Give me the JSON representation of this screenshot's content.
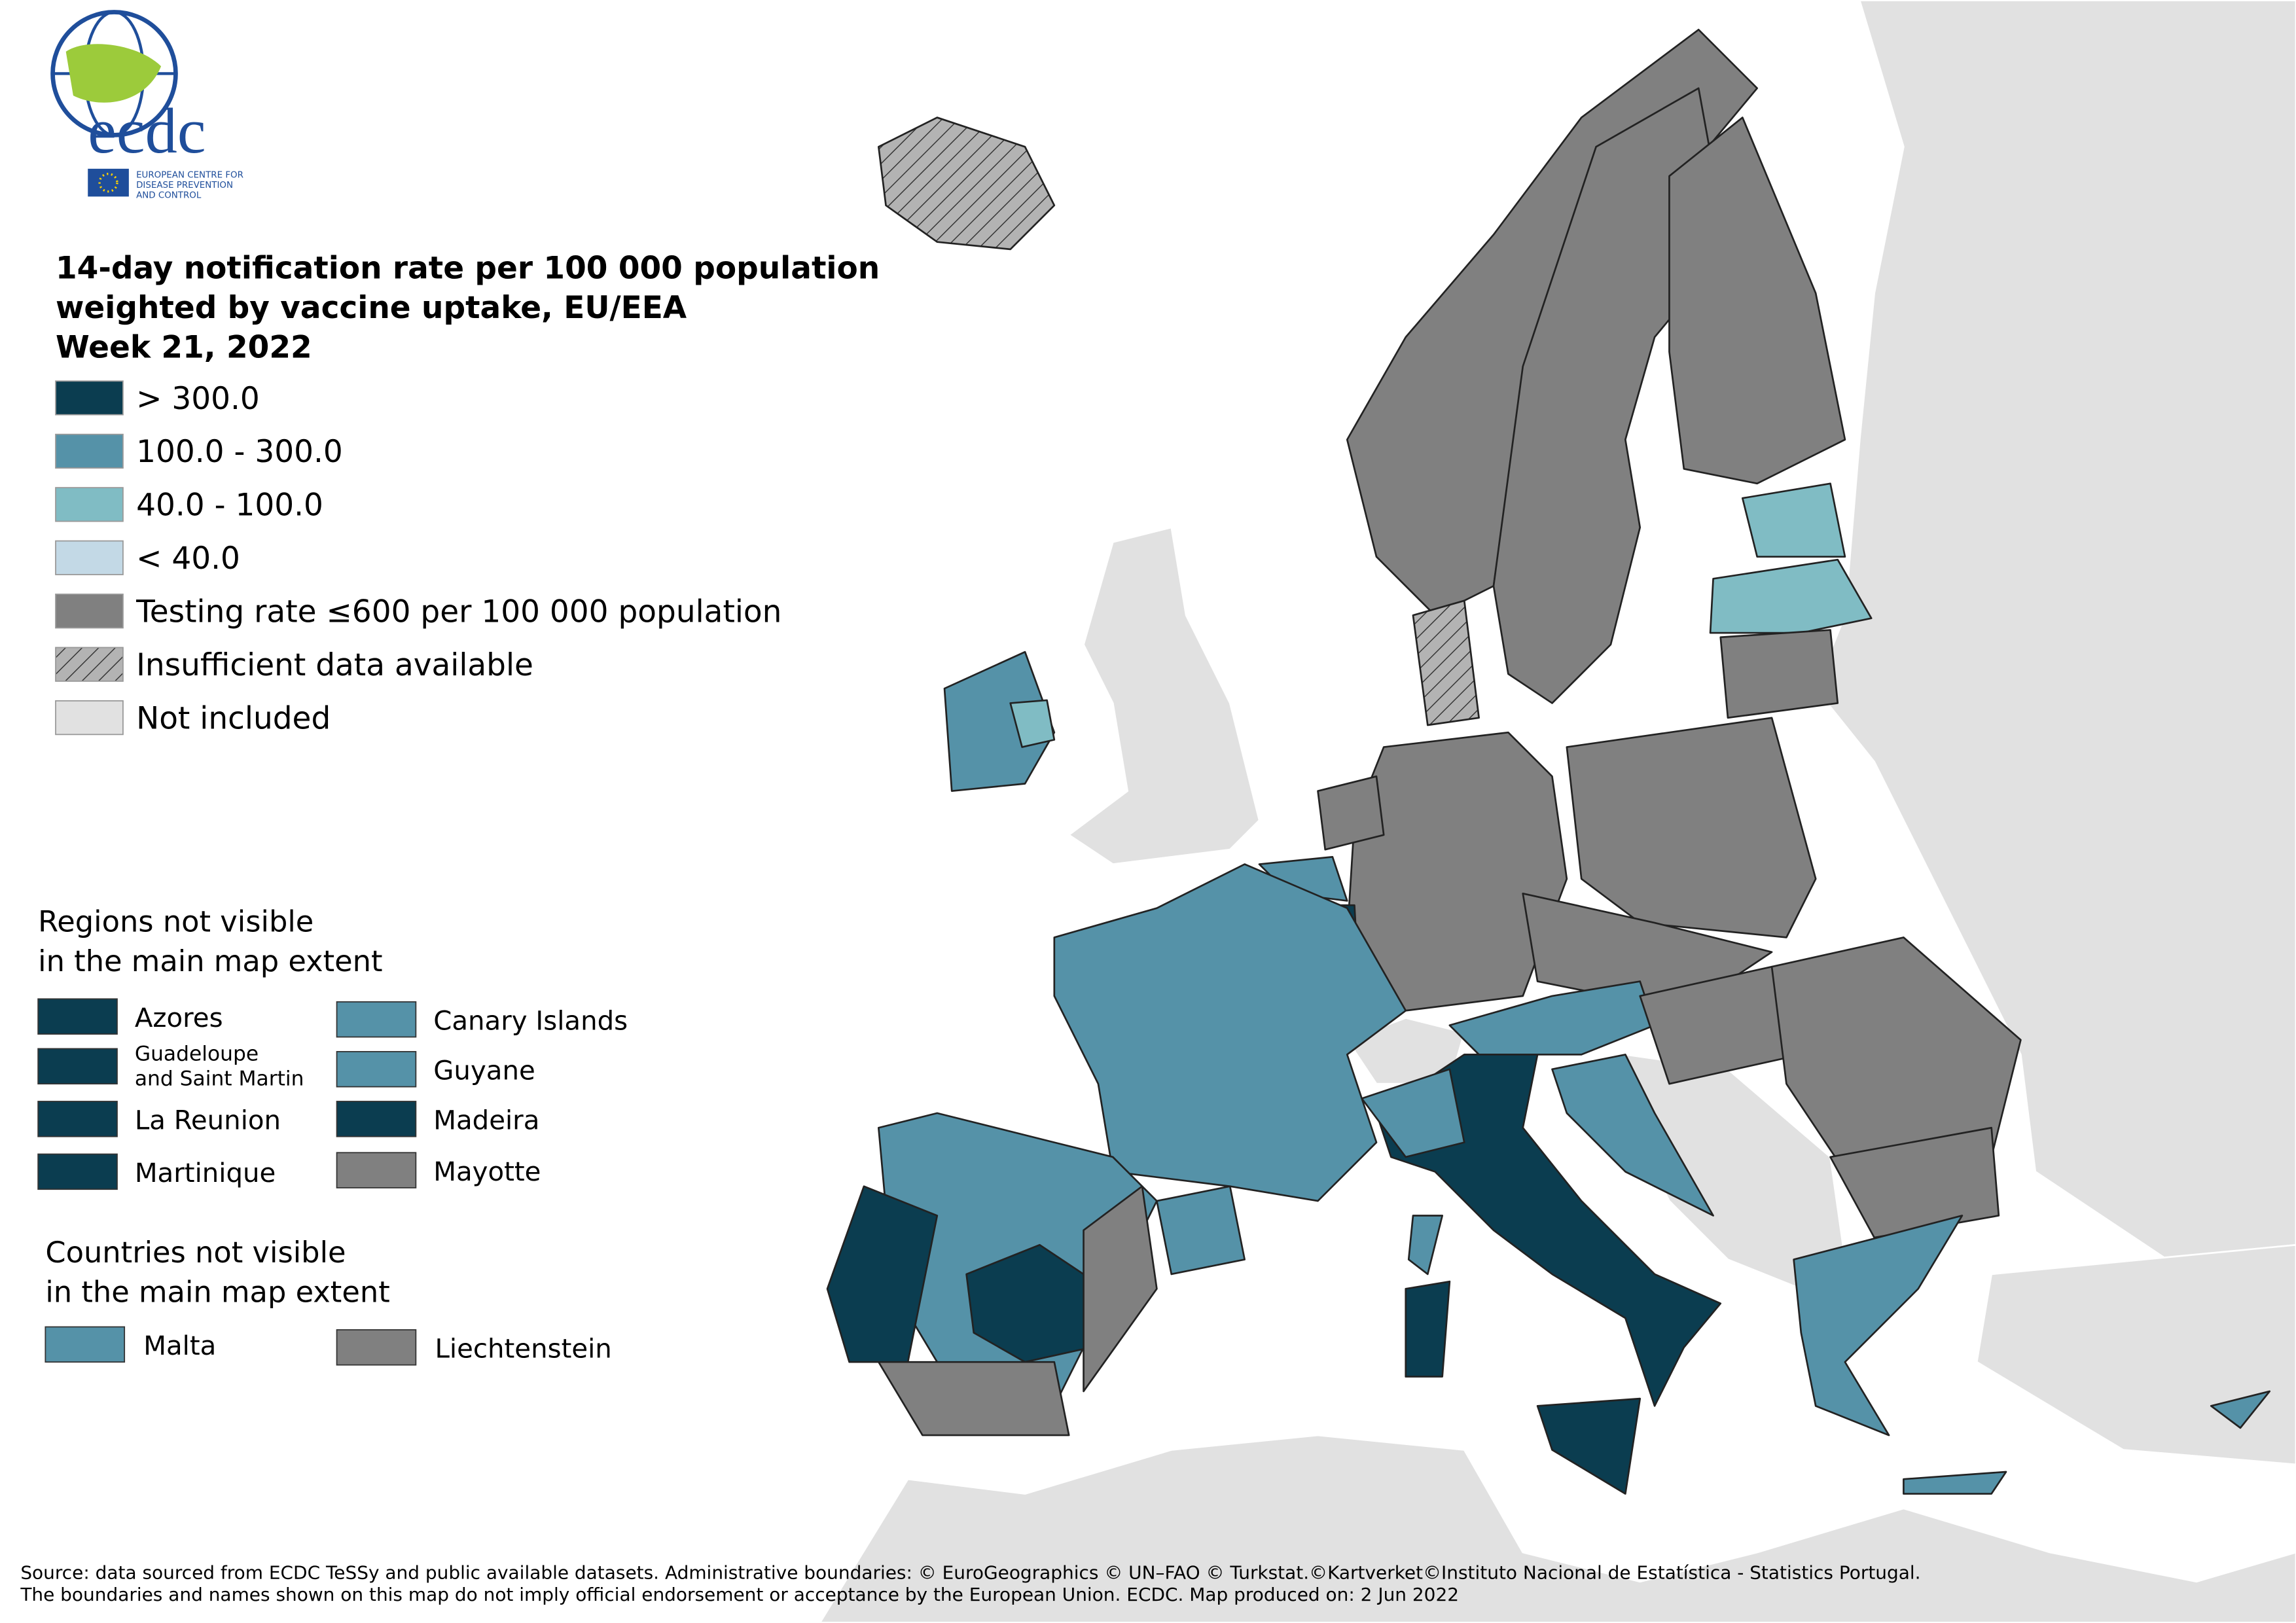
{
  "logo": {
    "name": "ecdc",
    "subtitle": [
      "EUROPEAN CENTRE FOR",
      "DISEASE PREVENTION",
      "AND CONTROL"
    ]
  },
  "title": [
    "14-day notification rate per 100 000 population",
    "weighted by vaccine uptake, EU/EEA",
    "Week 21, 2022"
  ],
  "legend": [
    {
      "label": "> 300.0",
      "color": "#0b3d50"
    },
    {
      "label": "100.0 - 300.0",
      "color": "#5592a8"
    },
    {
      "label": "40.0 - 100.0",
      "color": "#80bcc4"
    },
    {
      "label": "< 40.0",
      "color": "#c3d9e6"
    },
    {
      "label": "Testing rate ≤600 per 100 000 population",
      "color": "#808080"
    },
    {
      "label": "Insufficient data available",
      "color": "#b3b3b3",
      "pattern": "hatch"
    },
    {
      "label": "Not included",
      "color": "#e1e1e1"
    }
  ],
  "regions_not_visible": {
    "title": [
      "Regions not visible",
      "in the main map extent"
    ],
    "items": [
      {
        "label": [
          "Azores"
        ],
        "color": "#0b3d50"
      },
      {
        "label": [
          "Guadeloupe",
          "and Saint Martin"
        ],
        "color": "#0b3d50"
      },
      {
        "label": [
          "La Reunion"
        ],
        "color": "#0b3d50"
      },
      {
        "label": [
          "Martinique"
        ],
        "color": "#0b3d50"
      },
      {
        "label": [
          "Canary Islands"
        ],
        "color": "#5592a8"
      },
      {
        "label": [
          "Guyane"
        ],
        "color": "#5592a8"
      },
      {
        "label": [
          "Madeira"
        ],
        "color": "#0b3d50"
      },
      {
        "label": [
          "Mayotte"
        ],
        "color": "#808080"
      }
    ]
  },
  "countries_not_visible": {
    "title": [
      "Countries not visible",
      "in the main map extent"
    ],
    "items": [
      {
        "label": [
          "Malta"
        ],
        "color": "#5592a8"
      },
      {
        "label": [
          "Liechtenstein"
        ],
        "color": "#808080"
      }
    ]
  },
  "source": [
    "Source: data sourced from ECDC TeSSy and public available datasets. Administrative boundaries: © EuroGeographics © UN–FAO © Turkstat.©Kartverket©Instituto Nacional de Estatística - Statistics Portugal.",
    "The boundaries and names shown on this map do not imply official endorsement or acceptance by the European Union. ECDC. Map produced on: 2 Jun 2022"
  ]
}
